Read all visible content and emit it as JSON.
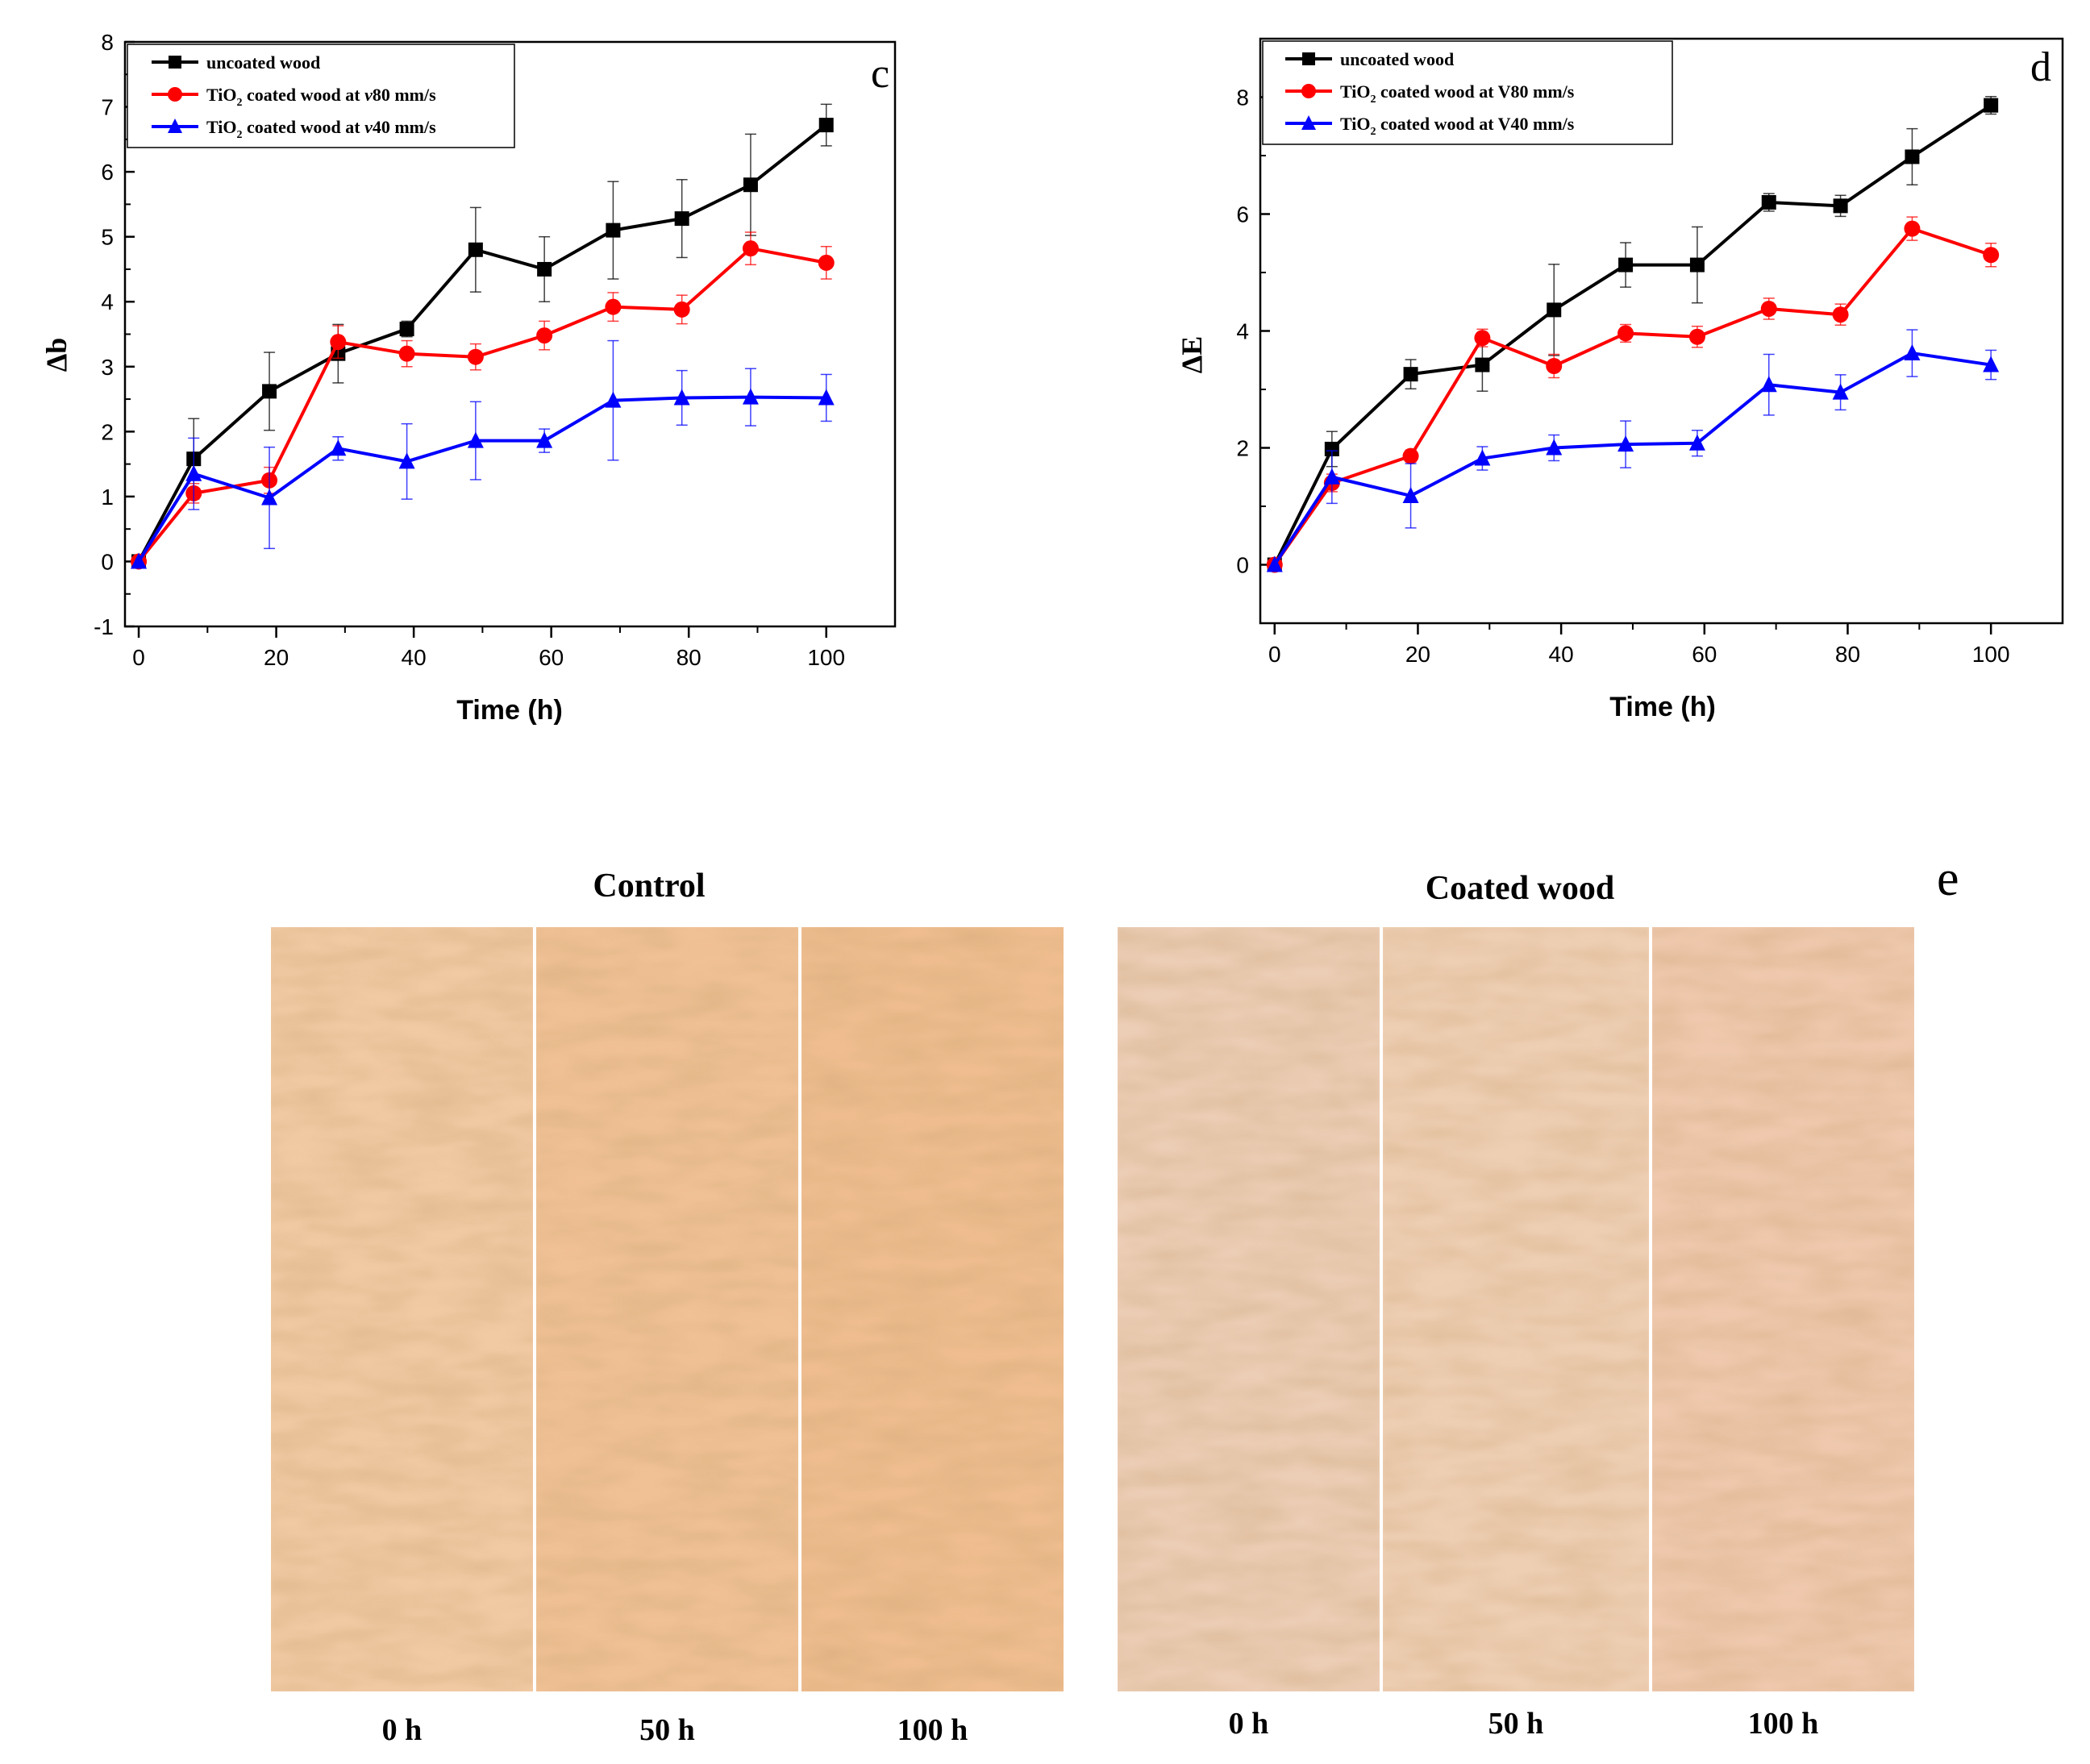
{
  "chart_data": [
    {
      "panel": "c",
      "type": "line",
      "ylabel": "Δb",
      "xlabel": "Time (h)",
      "xlim": [
        -2,
        110
      ],
      "ylim": [
        -1,
        8
      ],
      "xticks": [
        "0",
        "20",
        "40",
        "60",
        "80",
        "100"
      ],
      "yticks": [
        "-1",
        "0",
        "1",
        "2",
        "3",
        "4",
        "5",
        "6",
        "7",
        "8"
      ],
      "x": [
        0,
        8,
        19,
        29,
        39,
        49,
        59,
        69,
        79,
        89,
        100
      ],
      "series": [
        {
          "name": "uncoated wood",
          "color": "#000000",
          "marker": "square",
          "values": [
            0,
            1.58,
            2.62,
            3.2,
            3.58,
            4.8,
            4.5,
            5.1,
            5.28,
            5.8,
            6.72
          ],
          "errors": [
            0,
            0.62,
            0.6,
            0.45,
            0.12,
            0.65,
            0.5,
            0.75,
            0.6,
            0.78,
            0.32
          ]
        },
        {
          "name": "TiO2 coated wood at v80 mm/s",
          "color": "#ff0000",
          "marker": "circle",
          "values": [
            0,
            1.05,
            1.25,
            3.38,
            3.2,
            3.15,
            3.48,
            3.92,
            3.88,
            4.82,
            4.6
          ],
          "errors": [
            0,
            0.15,
            0.2,
            0.25,
            0.2,
            0.2,
            0.22,
            0.22,
            0.22,
            0.25,
            0.25
          ]
        },
        {
          "name": "TiO2 coated wood at v40 mm/s",
          "color": "#0000ff",
          "marker": "triangle",
          "values": [
            0,
            1.35,
            0.98,
            1.74,
            1.54,
            1.86,
            1.86,
            2.48,
            2.52,
            2.53,
            2.52
          ],
          "errors": [
            0,
            0.55,
            0.78,
            0.18,
            0.58,
            0.6,
            0.18,
            0.92,
            0.42,
            0.44,
            0.36
          ]
        }
      ],
      "legend": [
        {
          "pre": "uncoated wood",
          "sub": "",
          "post": ""
        },
        {
          "pre": "TiO",
          "sub": "2",
          "post": " coated wood at ",
          "ital": "v",
          "tail": "80 mm/s"
        },
        {
          "pre": "TiO",
          "sub": "2",
          "post": " coated wood at ",
          "ital": "v",
          "tail": "40 mm/s"
        }
      ]
    },
    {
      "panel": "d",
      "type": "line",
      "ylabel": "ΔE",
      "xlabel": "Time (h)",
      "xlim": [
        -2,
        110
      ],
      "ylim": [
        -1,
        9
      ],
      "xticks": [
        "0",
        "20",
        "40",
        "60",
        "80",
        "100"
      ],
      "yticks": [
        "0",
        "2",
        "4",
        "6",
        "8"
      ],
      "x": [
        0,
        8,
        19,
        29,
        39,
        49,
        59,
        69,
        79,
        89,
        100
      ],
      "series": [
        {
          "name": "uncoated wood",
          "color": "#000000",
          "marker": "square",
          "values": [
            0,
            1.98,
            3.26,
            3.42,
            4.36,
            5.13,
            5.13,
            6.2,
            6.14,
            6.98,
            7.86
          ],
          "errors": [
            0,
            0.3,
            0.25,
            0.45,
            0.78,
            0.38,
            0.65,
            0.15,
            0.18,
            0.48,
            0.15
          ]
        },
        {
          "name": "TiO2 coated wood at V80 mm/s",
          "color": "#ff0000",
          "marker": "circle",
          "values": [
            0,
            1.4,
            1.86,
            3.88,
            3.4,
            3.96,
            3.9,
            4.38,
            4.28,
            5.75,
            5.3
          ],
          "errors": [
            0,
            0.15,
            0.1,
            0.15,
            0.2,
            0.15,
            0.18,
            0.18,
            0.18,
            0.2,
            0.2
          ]
        },
        {
          "name": "TiO2 coated wood at V40 mm/s",
          "color": "#0000ff",
          "marker": "triangle",
          "values": [
            0,
            1.5,
            1.18,
            1.82,
            2.0,
            2.06,
            2.08,
            3.08,
            2.95,
            3.62,
            3.42
          ],
          "errors": [
            0,
            0.45,
            0.55,
            0.2,
            0.22,
            0.4,
            0.22,
            0.52,
            0.3,
            0.4,
            0.25
          ]
        }
      ],
      "legend": [
        {
          "pre": "uncoated wood",
          "sub": "",
          "post": ""
        },
        {
          "pre": "TiO",
          "sub": "2",
          "post": " coated wood at V80 mm/s"
        },
        {
          "pre": "TiO",
          "sub": "2",
          "post": " coated wood at V40 mm/s"
        }
      ]
    }
  ],
  "photos": {
    "panel_label": "e",
    "control_title": "Control",
    "coated_title": "Coated wood",
    "control_labels": [
      "0 h",
      "50 h",
      "100 h"
    ],
    "coated_labels": [
      "0 h",
      "50 h",
      "100 h"
    ],
    "control_colors": [
      "#f1c9a3",
      "#f0c195",
      "#efbd8f"
    ],
    "coated_colors": [
      "#eccdb5",
      "#efcfb4",
      "#efc8ad"
    ]
  }
}
